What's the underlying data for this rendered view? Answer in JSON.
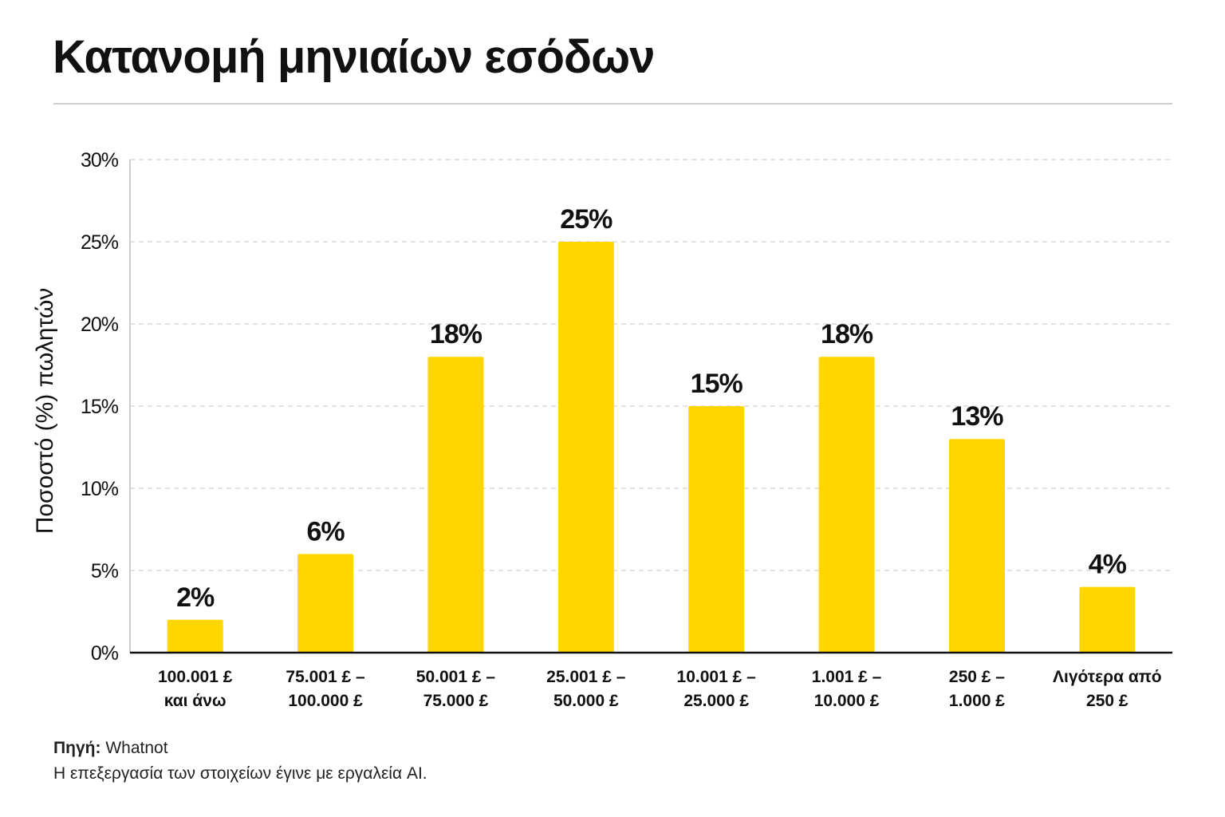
{
  "title": "Κατανομή μηνιαίων εσόδων",
  "footer": {
    "source_label": "Πηγή:",
    "source_value": "Whatnot",
    "note": "Η επεξεργασία των στοιχείων έγινε με εργαλεία AI."
  },
  "colors": {
    "bar": "#FFD600",
    "text": "#111111",
    "grid": "#d9d9d9",
    "axis": "#111111"
  },
  "chart_data": {
    "type": "bar",
    "title": "Κατανομή μηνιαίων εσόδων",
    "xlabel": "",
    "ylabel": "Ποσοστό (%) πωλητών",
    "categories": [
      [
        "100.001 £",
        "και άνω"
      ],
      [
        "75.001 £ –",
        "100.000 £"
      ],
      [
        "50.001 £ –",
        "75.000 £"
      ],
      [
        "25.001 £ –",
        "50.000 £"
      ],
      [
        "10.001 £ –",
        "25.000 £"
      ],
      [
        "1.001 £ –",
        "10.000 £"
      ],
      [
        "250 £ –",
        "1.000 £"
      ],
      [
        "Λιγότερα από",
        "250 £"
      ]
    ],
    "values": [
      2,
      6,
      18,
      25,
      15,
      18,
      13,
      4
    ],
    "value_labels": [
      "2%",
      "6%",
      "18%",
      "25%",
      "15%",
      "18%",
      "13%",
      "4%"
    ],
    "ylim": [
      0,
      30
    ],
    "yticks": [
      0,
      5,
      10,
      15,
      20,
      25,
      30
    ],
    "ytick_labels": [
      "0%",
      "5%",
      "10%",
      "15%",
      "20%",
      "25%",
      "30%"
    ],
    "grid": true,
    "legend": "none"
  }
}
